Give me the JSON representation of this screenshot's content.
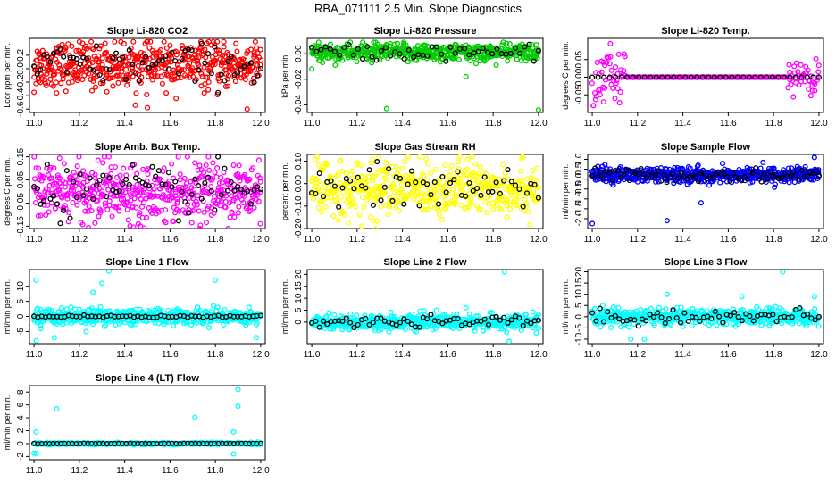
{
  "figure": {
    "title": "RBA_071111  2.5 Min. Slope Diagnostics"
  },
  "chart_data": [
    {
      "type": "scatter",
      "title": "Slope Li-820 CO2",
      "ylabel": "Lcor ppm per min.",
      "color": "#ff0000",
      "xlim": [
        10.98,
        12.02
      ],
      "ylim": [
        -0.65,
        0.45
      ],
      "xticks": [
        "11.0",
        "11.2",
        "11.4",
        "11.6",
        "11.8",
        "12.0"
      ],
      "xtick_values": [
        11.0,
        11.2,
        11.4,
        11.6,
        11.8,
        12.0
      ],
      "yticks": [
        "-0.6",
        "-0.4",
        "-0.2",
        "0.0",
        "0.2"
      ],
      "ytick_values": [
        -0.6,
        -0.4,
        -0.2,
        0.0,
        0.2
      ],
      "series": {
        "n_colored": 520,
        "n_black": 70,
        "center": 0.05,
        "spread": 0.17,
        "max": 0.4,
        "min": -0.62,
        "outliers": [
          [
            11.94,
            -0.6
          ],
          [
            11.5,
            -0.58
          ],
          [
            11.0,
            -0.35
          ]
        ]
      }
    },
    {
      "type": "scatter",
      "title": "Slope Li-820 Pressure",
      "ylabel": "kPa per min.",
      "color": "#00cc00",
      "xlim": [
        10.98,
        12.02
      ],
      "ylim": [
        -0.046,
        0.012
      ],
      "xticks": [
        "11.0",
        "11.2",
        "11.4",
        "11.6",
        "11.8",
        "12.0"
      ],
      "xtick_values": [
        11.0,
        11.2,
        11.4,
        11.6,
        11.8,
        12.0
      ],
      "yticks": [
        "-0.04",
        "-0.02",
        "0.00"
      ],
      "ytick_values": [
        -0.04,
        -0.02,
        0.0
      ],
      "series": {
        "n_colored": 520,
        "n_black": 50,
        "center": 0.001,
        "spread": 0.0035,
        "max": 0.009,
        "min": -0.01,
        "outliers": [
          [
            11.33,
            -0.043
          ],
          [
            12.0,
            -0.044
          ],
          [
            11.68,
            -0.018
          ],
          [
            11.0,
            -0.012
          ]
        ]
      }
    },
    {
      "type": "scatter",
      "title": "Slope Li-820 Temp.",
      "ylabel": "degrees C per min.",
      "color": "#ff00ff",
      "xlim": [
        10.98,
        12.02
      ],
      "ylim": [
        -0.1,
        0.11
      ],
      "xticks": [
        "11.0",
        "11.2",
        "11.4",
        "11.6",
        "11.8",
        "12.0"
      ],
      "xtick_values": [
        11.0,
        11.2,
        11.4,
        11.6,
        11.8,
        12.0
      ],
      "yticks": [
        "-0.05",
        "0.00",
        "0.05"
      ],
      "ytick_values": [
        -0.05,
        0.0,
        0.05
      ],
      "series": {
        "n_colored": 300,
        "n_black": 40,
        "center": 0.0,
        "spread": 0.0,
        "max": 0.1,
        "min": -0.09,
        "flat_line": 0.0,
        "noisy_ranges": [
          [
            10.98,
            11.15,
            0.04
          ],
          [
            11.86,
            12.0,
            0.025
          ]
        ],
        "outliers": [
          [
            11.08,
            0.095
          ],
          [
            11.05,
            -0.07
          ],
          [
            11.1,
            -0.06
          ]
        ]
      }
    },
    {
      "type": "scatter",
      "title": "Slope Amb. Box Temp.",
      "ylabel": "degrees C per min.",
      "color": "#ff00ff",
      "xlim": [
        10.98,
        12.02
      ],
      "ylim": [
        -0.16,
        0.16
      ],
      "xticks": [
        "11.0",
        "11.2",
        "11.4",
        "11.6",
        "11.8",
        "12.0"
      ],
      "xtick_values": [
        11.0,
        11.2,
        11.4,
        11.6,
        11.8,
        12.0
      ],
      "yticks": [
        "-0.15",
        "-0.05",
        "0.05",
        "0.15"
      ],
      "ytick_values": [
        -0.15,
        -0.05,
        0.05,
        0.15
      ],
      "series": {
        "n_colored": 520,
        "n_black": 70,
        "center": 0.0,
        "spread": 0.06,
        "max": 0.15,
        "min": -0.16,
        "outliers": [
          [
            11.33,
            0.15
          ],
          [
            11.46,
            -0.14
          ]
        ]
      }
    },
    {
      "type": "scatter",
      "title": "Slope Gas Stream RH",
      "ylabel": "percent per min.",
      "color": "#ffff00",
      "xlim": [
        10.98,
        12.02
      ],
      "ylim": [
        -0.2,
        0.13
      ],
      "xticks": [
        "11.0",
        "11.2",
        "11.4",
        "11.6",
        "11.8",
        "12.0"
      ],
      "xtick_values": [
        11.0,
        11.2,
        11.4,
        11.6,
        11.8,
        12.0
      ],
      "yticks": [
        "-0.20",
        "-0.10",
        "0.00",
        "0.10"
      ],
      "ytick_values": [
        -0.2,
        -0.1,
        0.0,
        0.1
      ],
      "series": {
        "n_colored": 520,
        "n_black": 60,
        "center": -0.02,
        "spread": 0.06,
        "max": 0.12,
        "min": -0.2,
        "outliers": [
          [
            11.28,
            -0.2
          ],
          [
            11.22,
            -0.19
          ]
        ]
      }
    },
    {
      "type": "scatter",
      "title": "Slope Sample Flow",
      "ylabel": "ml/min per min.",
      "color": "#0000ff",
      "xlim": [
        10.98,
        12.02
      ],
      "ylim": [
        -2.5,
        1.25
      ],
      "xticks": [
        "11.0",
        "11.2",
        "11.4",
        "11.6",
        "11.8",
        "12.0"
      ],
      "xtick_values": [
        11.0,
        11.2,
        11.4,
        11.6,
        11.8,
        12.0
      ],
      "yticks": [
        "-2.0",
        "-1.5",
        "-1.0",
        "-0.5",
        "0.0",
        "0.5",
        "1.0"
      ],
      "ytick_values": [
        -2.0,
        -1.5,
        -1.0,
        -0.5,
        0.0,
        0.5,
        1.0
      ],
      "series": {
        "n_colored": 620,
        "n_black": 80,
        "center": 0.2,
        "spread": 0.18,
        "max": 1.1,
        "min": -2.2,
        "outliers": [
          [
            11.0,
            -2.25
          ],
          [
            11.33,
            -2.1
          ],
          [
            11.48,
            -1.2
          ],
          [
            11.98,
            1.1
          ]
        ]
      }
    },
    {
      "type": "scatter",
      "title": "Slope Line 1 Flow",
      "ylabel": "ml/min per min.",
      "color": "#00ffff",
      "xlim": [
        10.98,
        12.02
      ],
      "ylim": [
        -9,
        15.5
      ],
      "xticks": [
        "11.0",
        "11.2",
        "11.4",
        "11.6",
        "11.8",
        "12.0"
      ],
      "xtick_values": [
        11.0,
        11.2,
        11.4,
        11.6,
        11.8,
        12.0
      ],
      "yticks": [
        "-5",
        "0",
        "5",
        "10"
      ],
      "ytick_values": [
        -5,
        0,
        5,
        10
      ],
      "series": {
        "n_colored": 520,
        "n_black": 60,
        "center": 0.0,
        "spread": 1.3,
        "max": 15,
        "min": -8,
        "black_flat": true,
        "outliers": [
          [
            11.33,
            15
          ],
          [
            11.01,
            12
          ],
          [
            11.3,
            11
          ],
          [
            11.26,
            8
          ],
          [
            11.8,
            12
          ],
          [
            11.01,
            -8
          ],
          [
            11.09,
            -7
          ],
          [
            11.98,
            -7
          ],
          [
            11.23,
            -5
          ]
        ]
      }
    },
    {
      "type": "scatter",
      "title": "Slope Line 2 Flow",
      "ylabel": "ml/min per min.",
      "color": "#00ffff",
      "xlim": [
        10.98,
        12.02
      ],
      "ylim": [
        -9,
        22
      ],
      "xticks": [
        "11.0",
        "11.2",
        "11.4",
        "11.6",
        "11.8",
        "12.0"
      ],
      "xtick_values": [
        11.0,
        11.2,
        11.4,
        11.6,
        11.8,
        12.0
      ],
      "yticks": [
        "0",
        "5",
        "10",
        "15",
        "20"
      ],
      "ytick_values": [
        0,
        5,
        10,
        15,
        20
      ],
      "series": {
        "n_colored": 520,
        "n_black": 60,
        "center": 0.0,
        "spread": 1.5,
        "max": 21,
        "min": -8,
        "outliers": [
          [
            11.85,
            21
          ],
          [
            11.87,
            -8
          ],
          [
            11.55,
            5
          ],
          [
            11.68,
            6
          ]
        ]
      }
    },
    {
      "type": "scatter",
      "title": "Slope Line 3 Flow",
      "ylabel": "ml/min per min.",
      "color": "#00ffff",
      "xlim": [
        10.98,
        12.02
      ],
      "ylim": [
        -12,
        21
      ],
      "xticks": [
        "11.0",
        "11.2",
        "11.4",
        "11.6",
        "11.8",
        "12.0"
      ],
      "xtick_values": [
        11.0,
        11.2,
        11.4,
        11.6,
        11.8,
        12.0
      ],
      "yticks": [
        "-10",
        "-5",
        "0",
        "5",
        "10",
        "15",
        "20"
      ],
      "ytick_values": [
        -10,
        -5,
        0,
        5,
        10,
        15,
        20
      ],
      "series": {
        "n_colored": 520,
        "n_black": 60,
        "center": 0.0,
        "spread": 1.8,
        "max": 20,
        "min": -11,
        "outliers": [
          [
            11.84,
            20
          ],
          [
            11.33,
            10
          ],
          [
            11.98,
            9
          ],
          [
            11.17,
            -10
          ],
          [
            11.23,
            -10
          ],
          [
            11.66,
            9
          ]
        ]
      }
    },
    {
      "type": "scatter",
      "title": "Slope Line 4 (LT) Flow",
      "ylabel": "ml/min per min.",
      "color": "#00ffff",
      "xlim": [
        10.98,
        12.02
      ],
      "ylim": [
        -2.5,
        9
      ],
      "xticks": [
        "11.0",
        "11.2",
        "11.4",
        "11.6",
        "11.8",
        "12.0"
      ],
      "xtick_values": [
        11.0,
        11.2,
        11.4,
        11.6,
        11.8,
        12.0
      ],
      "yticks": [
        "-2",
        "0",
        "2",
        "4",
        "6",
        "8"
      ],
      "ytick_values": [
        -2,
        0,
        2,
        4,
        6,
        8
      ],
      "series": {
        "n_colored": 260,
        "n_black": 60,
        "center": 0.0,
        "spread": 0.1,
        "max": 8.5,
        "min": -2.2,
        "black_flat": true,
        "outliers": [
          [
            11.9,
            8.4
          ],
          [
            11.9,
            5.8
          ],
          [
            11.1,
            5.4
          ],
          [
            11.71,
            4.1
          ],
          [
            11.01,
            1.8
          ],
          [
            11.88,
            1.8
          ],
          [
            11.01,
            -1.5
          ],
          [
            11.88,
            -1.6
          ],
          [
            11.0,
            -1.5
          ]
        ]
      }
    }
  ]
}
